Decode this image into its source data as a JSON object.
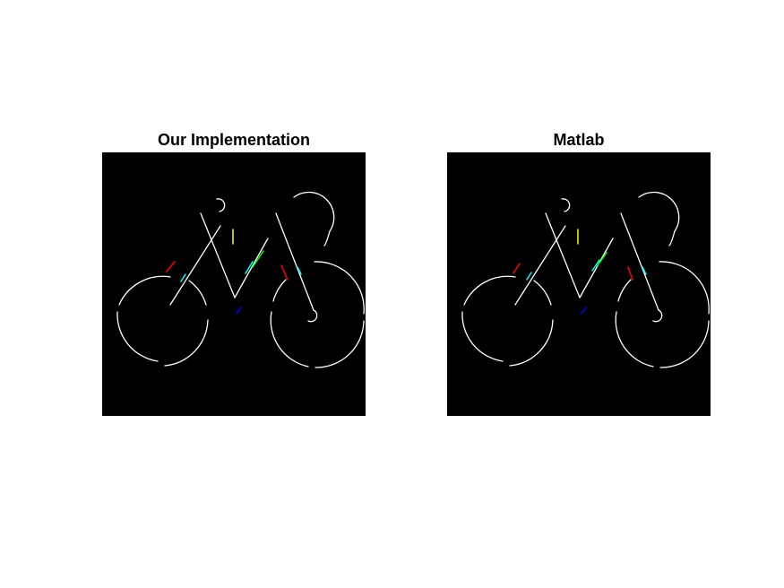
{
  "figure": {
    "background_color": "#ffffff",
    "panels": [
      {
        "title": "Our Implementation"
      },
      {
        "title": "Matlab"
      }
    ]
  },
  "image_content": {
    "subject": "bicycle line-segment detection result",
    "background_color": "#000000",
    "line_color": "#ffffff",
    "highlight_colors": [
      "#ff0000",
      "#00ffff",
      "#00ff00",
      "#ffff00",
      "#0000ff"
    ]
  }
}
